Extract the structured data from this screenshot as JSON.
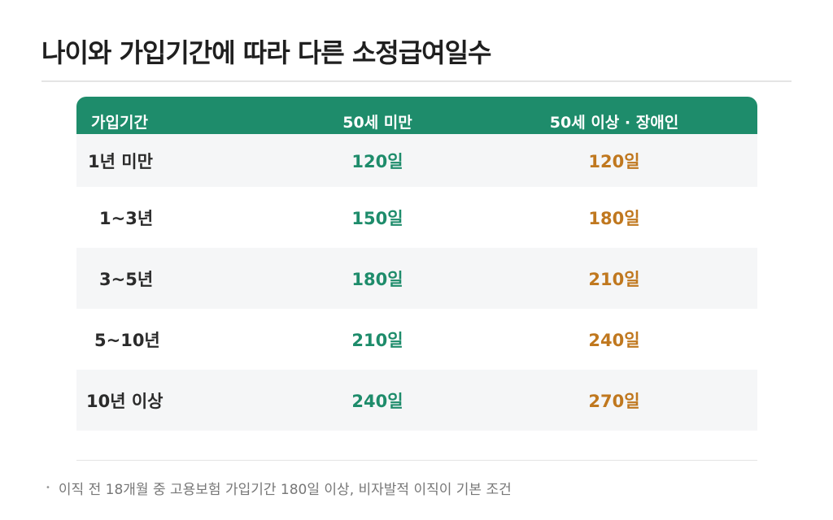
{
  "title": "나이와 가입기간에 따라 다른 소정급여일수",
  "table": {
    "headers": [
      "가입기간",
      "50세 미만",
      "50세 이상 · 장애인"
    ],
    "rows": [
      {
        "period": "1년 미만",
        "under50": "120일",
        "over50": "120일"
      },
      {
        "period": "1~3년",
        "under50": "150일",
        "over50": "180일"
      },
      {
        "period": "3~5년",
        "under50": "180일",
        "over50": "210일"
      },
      {
        "period": "5~10년",
        "under50": "210일",
        "over50": "240일"
      },
      {
        "period": "10년 이상",
        "under50": "240일",
        "over50": "270일"
      }
    ]
  },
  "note": {
    "bullet": "•",
    "text": "이직 전 18개월 중 고용보험 가입기간 180일 이상, 비자발적 이직이 기본 조건"
  },
  "colors": {
    "header_bg": "#1e8c6b",
    "under50_text": "#1e8c6b",
    "over50_text": "#c0781f",
    "row_shade": "#f5f6f7"
  }
}
